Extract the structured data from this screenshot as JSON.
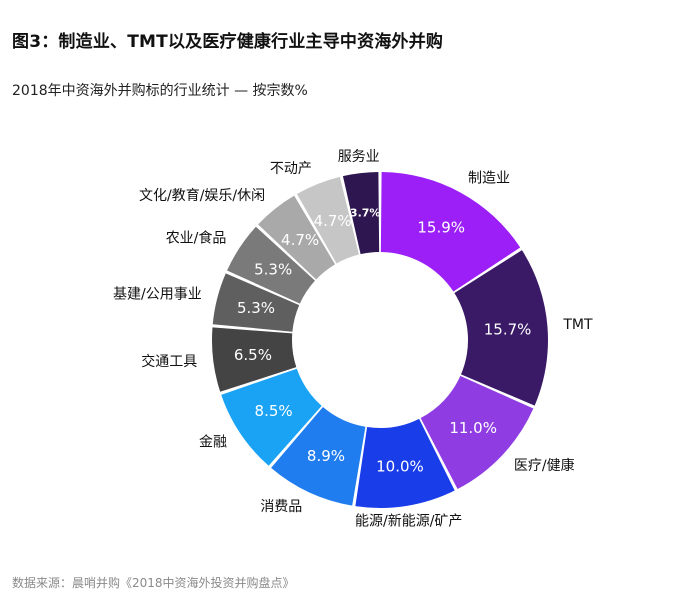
{
  "figure_title": "图3：制造业、TMT以及医疗健康行业主导中资海外并购",
  "source_note": "数据来源：晨哨并购《2018中资海外投资并购盘点》",
  "chart_data": {
    "type": "pie",
    "donut": true,
    "title": "2018年中资海外并购标的行业统计 — 按宗数%",
    "direction": "clockwise-from-top",
    "slices": [
      {
        "label": "制造业",
        "value": 15.9,
        "value_label": "15.9%",
        "color": "#9b1ff6"
      },
      {
        "label": "TMT",
        "value": 15.7,
        "value_label": "15.7%",
        "color": "#3a1a66"
      },
      {
        "label": "医疗/健康",
        "value": 11.0,
        "value_label": "11.0%",
        "color": "#8f3de3"
      },
      {
        "label": "能源/新能源/矿产",
        "value": 10.0,
        "value_label": "10.0%",
        "color": "#1a3dea"
      },
      {
        "label": "消费品",
        "value": 8.9,
        "value_label": "8.9%",
        "color": "#1f7df0"
      },
      {
        "label": "金融",
        "value": 8.5,
        "value_label": "8.5%",
        "color": "#1aa3f5"
      },
      {
        "label": "交通工具",
        "value": 6.5,
        "value_label": "6.5%",
        "color": "#444444"
      },
      {
        "label": "基建/公用事业",
        "value": 5.3,
        "value_label": "5.3%",
        "color": "#5f5f5f"
      },
      {
        "label": "农业/食品",
        "value": 5.3,
        "value_label": "5.3%",
        "color": "#7a7a7a"
      },
      {
        "label": "文化/教育/娱乐/休闲",
        "value": 4.7,
        "value_label": "4.7%",
        "color": "#a9a9a9"
      },
      {
        "label": "不动产",
        "value": 4.7,
        "value_label": "4.7%",
        "color": "#c6c6c6"
      },
      {
        "label": "服务业",
        "value": 3.7,
        "value_label": "3.7%",
        "color": "#2e1650"
      }
    ]
  }
}
